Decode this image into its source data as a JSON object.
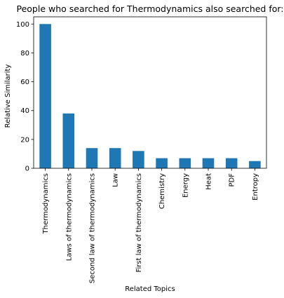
{
  "chart_data": {
    "type": "bar",
    "title": "People who searched for Thermodynamics also searched for:",
    "xlabel": "Related Topics",
    "ylabel": "Relative Similarity",
    "categories": [
      "Thermodynamics",
      "Laws of thermodynamics",
      "Second law of thermodynamics",
      "Law",
      "First law of thermodynamics",
      "Chemistry",
      "Energy",
      "Heat",
      "PDF",
      "Entropy"
    ],
    "values": [
      100,
      38,
      14,
      14,
      12,
      7,
      7,
      7,
      7,
      5
    ],
    "ylim": [
      0,
      105
    ],
    "yticks": [
      0,
      20,
      40,
      60,
      80,
      100
    ],
    "bar_color": "#1f77b4",
    "grid": false,
    "legend": "none"
  }
}
